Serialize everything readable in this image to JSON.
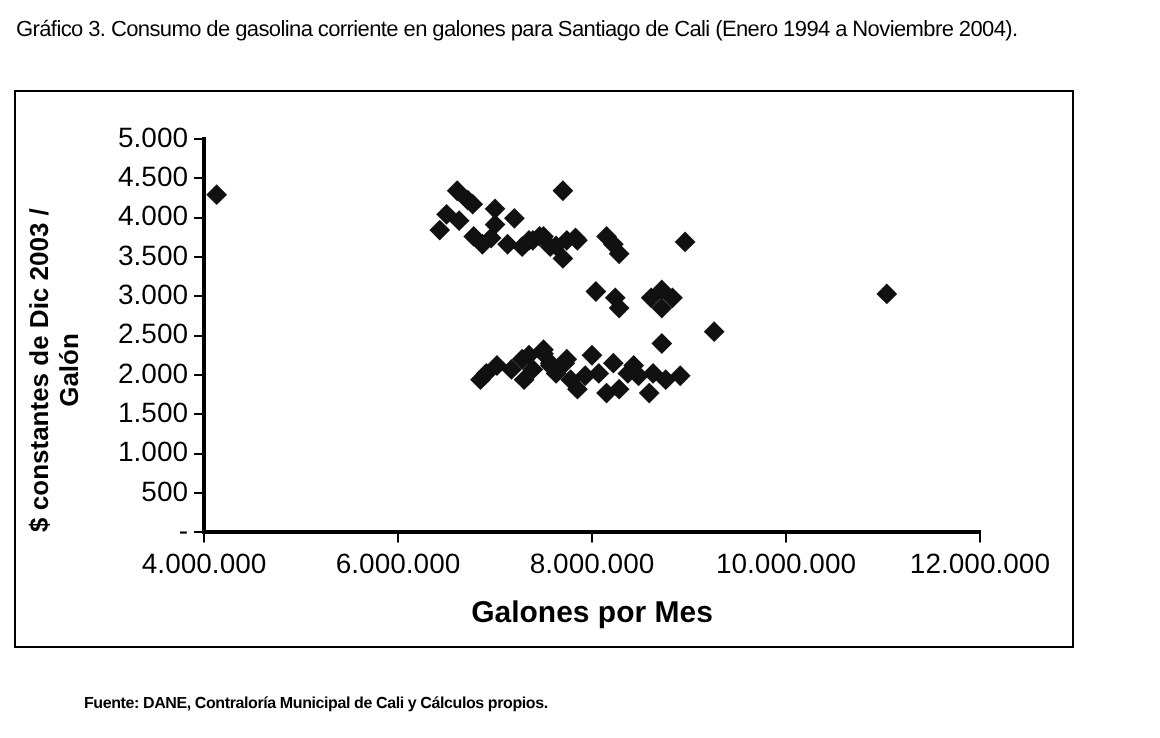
{
  "chart_data": {
    "type": "scatter",
    "title": "Gráfico 3. Consumo de gasolina corriente en galones para Santiago de Cali (Enero 1994 a Noviembre 2004).",
    "xlabel": "Galones por Mes",
    "ylabel": "$ constantes de Dic 2003 / Galón",
    "annotations": [
      "Fuente: DANE, Contraloría Municipal de Cali y Cálculos propios."
    ],
    "xlim": [
      4000000,
      12000000
    ],
    "xticks": [
      {
        "value": 4000000,
        "label": "4.000.000"
      },
      {
        "value": 6000000,
        "label": "6.000.000"
      },
      {
        "value": 8000000,
        "label": "8.000.000"
      },
      {
        "value": 10000000,
        "label": "10.000.000"
      },
      {
        "value": 12000000,
        "label": "12.000.000"
      }
    ],
    "ylim": [
      0,
      5000
    ],
    "yticks": [
      {
        "value": 0,
        "label": "-"
      },
      {
        "value": 500,
        "label": "500"
      },
      {
        "value": 1000,
        "label": "1.000"
      },
      {
        "value": 1500,
        "label": "1.500"
      },
      {
        "value": 2000,
        "label": "2.000"
      },
      {
        "value": 2500,
        "label": "2.500"
      },
      {
        "value": 3000,
        "label": "3.000"
      },
      {
        "value": 3500,
        "label": "3.500"
      },
      {
        "value": 4000,
        "label": "4.000"
      },
      {
        "value": 4500,
        "label": "4.500"
      },
      {
        "value": 5000,
        "label": "5.000"
      }
    ],
    "grid": false,
    "legend": false,
    "marker": "diamond",
    "series": [
      {
        "color": "#111111",
        "x": [
          4130000,
          11040000,
          6430000,
          6500000,
          6610000,
          6630000,
          6720000,
          6770000,
          6780000,
          6870000,
          7000000,
          7000000,
          6960000,
          7200000,
          7130000,
          7280000,
          7390000,
          7500000,
          7570000,
          7700000,
          7700000,
          7740000,
          7850000,
          7350000,
          7460000,
          7630000,
          7830000,
          8150000,
          8220000,
          8280000,
          8960000,
          8040000,
          8240000,
          8280000,
          8610000,
          8720000,
          8830000,
          8720000,
          9260000,
          8720000,
          6850000,
          6910000,
          7020000,
          7170000,
          7280000,
          7300000,
          7390000,
          7500000,
          7570000,
          7630000,
          7740000,
          7850000,
          7930000,
          7350000,
          7500000,
          7570000,
          7720000,
          8000000,
          8070000,
          8150000,
          8220000,
          8280000,
          8370000,
          8480000,
          8590000,
          8630000,
          8760000,
          8910000,
          7780000,
          8430000
        ],
        "values": [
          4290,
          3030,
          3840,
          4040,
          4340,
          3960,
          4220,
          4170,
          3760,
          3660,
          4110,
          3910,
          3740,
          3990,
          3660,
          3630,
          3710,
          3760,
          3630,
          4340,
          3480,
          3710,
          3710,
          3710,
          3760,
          3640,
          3740,
          3760,
          3660,
          3540,
          3690,
          3060,
          2980,
          2850,
          2980,
          3080,
          2980,
          2850,
          2550,
          2400,
          1940,
          2020,
          2120,
          2070,
          2200,
          1940,
          2070,
          2270,
          2150,
          2020,
          2200,
          1820,
          1990,
          2250,
          2320,
          2120,
          2150,
          2250,
          2020,
          1770,
          2150,
          1820,
          2020,
          1990,
          1770,
          2020,
          1940,
          1990,
          1940,
          2120
        ]
      }
    ]
  }
}
